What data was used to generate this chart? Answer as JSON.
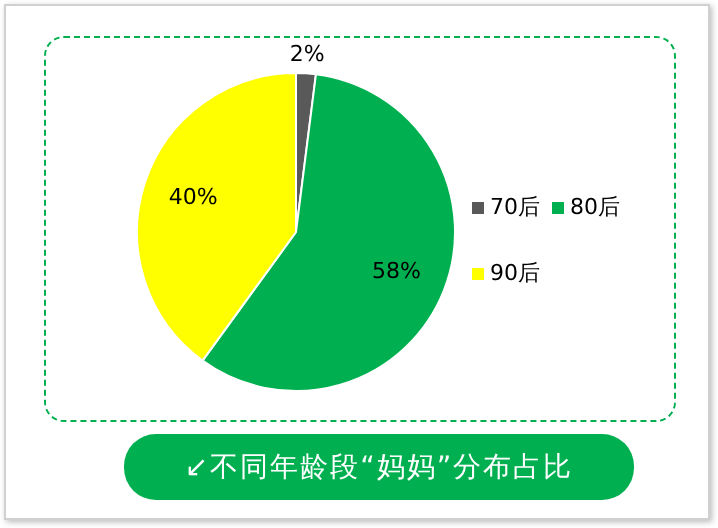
{
  "chart_data": {
    "type": "pie",
    "title": "↙不同年龄段“妈妈”分布占比",
    "categories": [
      "70后",
      "80后",
      "90后"
    ],
    "values": [
      2,
      58,
      40
    ],
    "colors": [
      "#595959",
      "#00b050",
      "#ffff00"
    ],
    "value_labels": [
      "2%",
      "58%",
      "40%"
    ],
    "legend": "right"
  }
}
